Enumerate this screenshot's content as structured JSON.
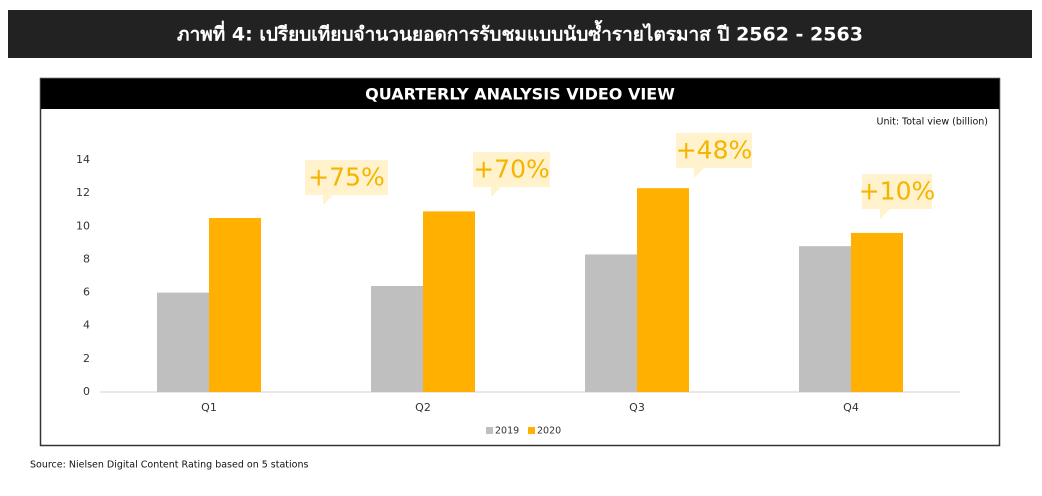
{
  "header": {
    "title": "ภาพที่ 4: เปรียบเทียบจำนวนยอดการรับชมแบบนับซ้ำรายไตรมาส ปี 2562 - 2563"
  },
  "chart_data": {
    "type": "bar",
    "title": "QUARTERLY ANALYSIS VIDEO VIEW",
    "unit_label": "Unit: Total view (billion)",
    "categories": [
      "Q1",
      "Q2",
      "Q3",
      "Q4"
    ],
    "series": [
      {
        "name": "2019",
        "color": "#bfbfbf",
        "values": [
          6.0,
          6.4,
          8.3,
          8.8
        ]
      },
      {
        "name": "2020",
        "color": "#ffb000",
        "values": [
          10.5,
          10.9,
          12.3,
          9.6
        ]
      }
    ],
    "ylim": [
      0,
      14
    ],
    "yticks": [
      0,
      2,
      4,
      6,
      8,
      10,
      12,
      14
    ],
    "grid": false,
    "annotations": [
      "+75%",
      "+70%",
      "+48%",
      "+10%"
    ],
    "legend": "bottom"
  },
  "source": "Source: Nielsen Digital Content Rating based on 5 stations"
}
